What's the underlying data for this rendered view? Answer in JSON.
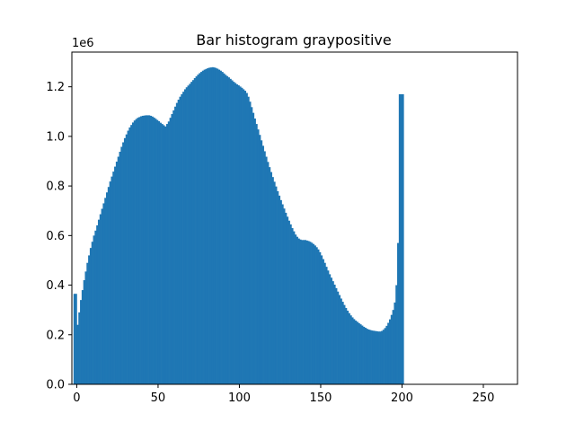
{
  "chart_data": {
    "type": "bar",
    "title": "Bar histogram graypositive",
    "xlabel": "",
    "ylabel": "",
    "y_offset_label": "1e6",
    "xlim": [
      -3,
      271
    ],
    "ylim": [
      0,
      1.34
    ],
    "y_unit_multiplier": 1000000,
    "x_ticks": [
      0,
      50,
      100,
      150,
      200,
      250
    ],
    "y_ticks": [
      0.0,
      0.2,
      0.4,
      0.6,
      0.8,
      1.0,
      1.2
    ],
    "y_tick_labels": [
      "0.0",
      "0.2",
      "0.4",
      "0.6",
      "0.8",
      "1.0",
      "1.2"
    ],
    "bar_color": "#1f77b4",
    "grid": false,
    "series": [
      {
        "x_start": -2,
        "bin_width": 1,
        "values": [
          0.365,
          0.365,
          0.24,
          0.29,
          0.34,
          0.38,
          0.42,
          0.455,
          0.49,
          0.52,
          0.55,
          0.575,
          0.6,
          0.62,
          0.641,
          0.664,
          0.686,
          0.708,
          0.73,
          0.752,
          0.774,
          0.796,
          0.818,
          0.838,
          0.858,
          0.878,
          0.898,
          0.918,
          0.938,
          0.958,
          0.976,
          0.993,
          1.008,
          1.023,
          1.036,
          1.046,
          1.056,
          1.064,
          1.07,
          1.075,
          1.078,
          1.081,
          1.083,
          1.084,
          1.085,
          1.085,
          1.085,
          1.083,
          1.08,
          1.076,
          1.071,
          1.066,
          1.061,
          1.055,
          1.05,
          1.045,
          1.04,
          1.05,
          1.06,
          1.075,
          1.09,
          1.105,
          1.12,
          1.135,
          1.148,
          1.16,
          1.17,
          1.18,
          1.19,
          1.198,
          1.205,
          1.212,
          1.22,
          1.227,
          1.235,
          1.242,
          1.249,
          1.255,
          1.26,
          1.265,
          1.269,
          1.272,
          1.275,
          1.277,
          1.278,
          1.279,
          1.278,
          1.276,
          1.273,
          1.269,
          1.265,
          1.26,
          1.254,
          1.248,
          1.243,
          1.238,
          1.232,
          1.226,
          1.22,
          1.215,
          1.21,
          1.206,
          1.201,
          1.196,
          1.19,
          1.184,
          1.175,
          1.16,
          1.14,
          1.118,
          1.095,
          1.072,
          1.05,
          1.028,
          1.006,
          0.984,
          0.962,
          0.94,
          0.918,
          0.897,
          0.876,
          0.856,
          0.836,
          0.817,
          0.798,
          0.779,
          0.761,
          0.743,
          0.726,
          0.709,
          0.692,
          0.676,
          0.66,
          0.645,
          0.63,
          0.617,
          0.604,
          0.595,
          0.588,
          0.584,
          0.582,
          0.582,
          0.582,
          0.58,
          0.578,
          0.575,
          0.571,
          0.566,
          0.56,
          0.553,
          0.544,
          0.533,
          0.52,
          0.505,
          0.49,
          0.474,
          0.459,
          0.444,
          0.43,
          0.416,
          0.402,
          0.388,
          0.374,
          0.36,
          0.346,
          0.333,
          0.32,
          0.308,
          0.297,
          0.287,
          0.278,
          0.27,
          0.263,
          0.257,
          0.252,
          0.247,
          0.242,
          0.237,
          0.232,
          0.228,
          0.224,
          0.221,
          0.219,
          0.217,
          0.216,
          0.215,
          0.214,
          0.213,
          0.213,
          0.215,
          0.22,
          0.227,
          0.236,
          0.248,
          0.262,
          0.28,
          0.3,
          0.33,
          0.4,
          0.57,
          1.17,
          1.17,
          1.17
        ]
      }
    ]
  }
}
